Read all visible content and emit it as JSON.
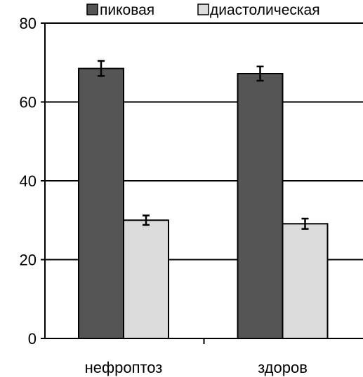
{
  "chart_data": {
    "type": "bar",
    "categories": [
      "нефроптоз",
      "здоров"
    ],
    "series": [
      {
        "name": "пиковая",
        "values": [
          68.5,
          67.2
        ],
        "errors": [
          1.9,
          1.8
        ],
        "color": "#555555"
      },
      {
        "name": "диастолическая",
        "values": [
          30.0,
          29.1
        ],
        "errors": [
          1.2,
          1.3
        ],
        "color": "#dcdcdc"
      }
    ],
    "title": "",
    "xlabel": "",
    "ylabel": "",
    "ylim": [
      0,
      80
    ],
    "yticks": [
      0,
      20,
      40,
      60,
      80
    ],
    "grid": true,
    "legend_position": "top"
  }
}
